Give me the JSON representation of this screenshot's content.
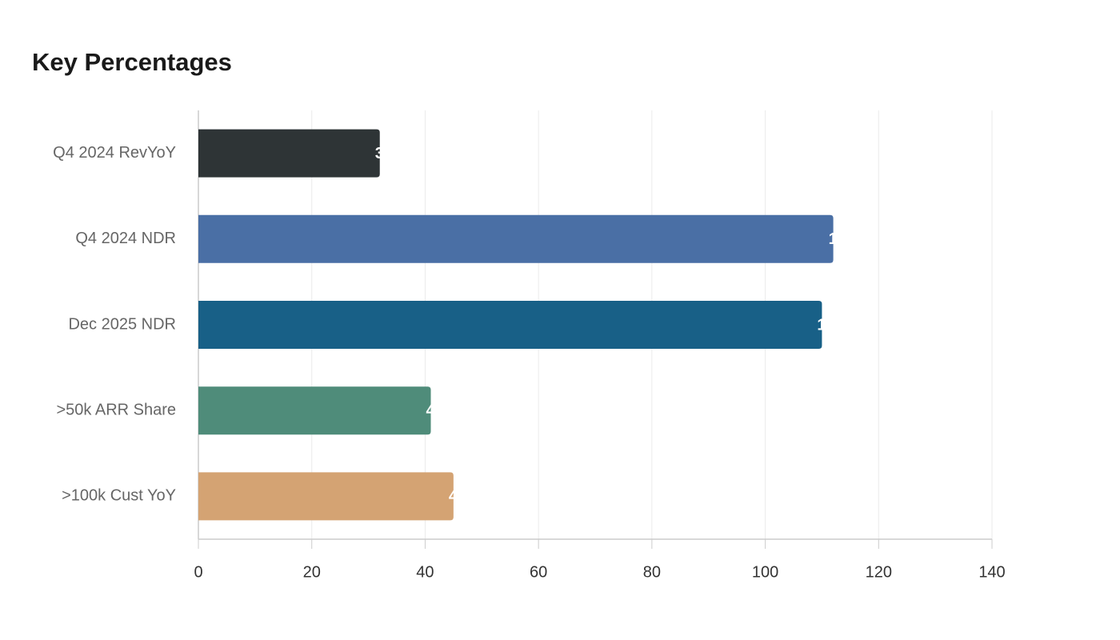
{
  "chart_data": {
    "type": "bar",
    "orientation": "horizontal",
    "title": "Key Percentages",
    "categories": [
      "Q4 2024 RevYoY",
      "Q4 2024 NDR",
      "Dec 2025 NDR",
      ">50k ARR Share",
      ">100k Cust YoY"
    ],
    "values": [
      32,
      112,
      110,
      41,
      45
    ],
    "colors": [
      "#2e3436",
      "#4a6fa5",
      "#186087",
      "#4f8c7a",
      "#d4a373"
    ],
    "xlim": [
      0,
      140
    ],
    "xticks": [
      0,
      20,
      40,
      60,
      80,
      100,
      120,
      140
    ],
    "grid": true
  }
}
